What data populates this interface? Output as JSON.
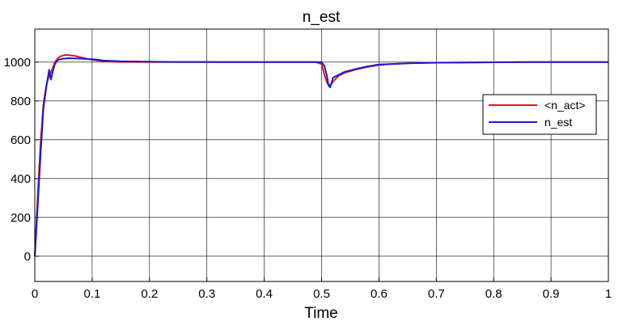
{
  "chart_data": {
    "type": "line",
    "title": "n_est",
    "xlabel": "Time",
    "ylabel": "",
    "xlim": [
      0,
      1
    ],
    "ylim": [
      -130,
      1170
    ],
    "xticks": [
      "0",
      "0.1",
      "0.2",
      "0.3",
      "0.4",
      "0.5",
      "0.6",
      "0.7",
      "0.8",
      "0.9",
      "1"
    ],
    "yticks": [
      "0",
      "200",
      "400",
      "600",
      "800",
      "1000"
    ],
    "grid": true,
    "legend_position": "right",
    "colors": {
      "background": "#ffffff",
      "grid": "#000000",
      "n_act": "#e0161b",
      "n_est": "#1a1ad6"
    },
    "series": [
      {
        "name": "<n_act>",
        "color": "#e0161b",
        "x": [
          0,
          0.005,
          0.01,
          0.015,
          0.02,
          0.025,
          0.03,
          0.035,
          0.04,
          0.045,
          0.05,
          0.055,
          0.06,
          0.07,
          0.08,
          0.09,
          0.1,
          0.11,
          0.12,
          0.13,
          0.15,
          0.2,
          0.25,
          0.3,
          0.35,
          0.4,
          0.45,
          0.49,
          0.5,
          0.505,
          0.51,
          0.515,
          0.52,
          0.53,
          0.54,
          0.56,
          0.58,
          0.6,
          0.62,
          0.65,
          0.7,
          0.75,
          0.8,
          0.85,
          0.9,
          0.95,
          1.0
        ],
        "y": [
          0,
          300,
          580,
          780,
          880,
          930,
          960,
          1000,
          1020,
          1030,
          1035,
          1037,
          1036,
          1032,
          1025,
          1018,
          1012,
          1008,
          1005,
          1003,
          1001,
          1000,
          1000,
          1000,
          1000,
          1000,
          1000,
          1000,
          990,
          935,
          890,
          880,
          900,
          930,
          945,
          962,
          975,
          985,
          990,
          994,
          997,
          998,
          999,
          1000,
          1000,
          1000,
          1000
        ]
      },
      {
        "name": "n_est",
        "color": "#1a1ad6",
        "x": [
          0,
          0.005,
          0.01,
          0.015,
          0.02,
          0.025,
          0.028,
          0.032,
          0.035,
          0.04,
          0.045,
          0.05,
          0.06,
          0.08,
          0.1,
          0.11,
          0.12,
          0.15,
          0.2,
          0.25,
          0.3,
          0.35,
          0.4,
          0.45,
          0.5,
          0.505,
          0.51,
          0.512,
          0.515,
          0.518,
          0.52,
          0.53,
          0.54,
          0.56,
          0.58,
          0.6,
          0.62,
          0.65,
          0.7,
          0.75,
          0.8,
          0.85,
          0.9,
          0.95,
          1.0
        ],
        "y": [
          0,
          250,
          520,
          760,
          870,
          960,
          910,
          960,
          990,
          1010,
          1015,
          1018,
          1020,
          1018,
          1015,
          1012,
          1008,
          1004,
          1002,
          1001,
          1001,
          1000,
          1000,
          1000,
          1000,
          980,
          920,
          880,
          870,
          900,
          920,
          935,
          950,
          965,
          978,
          988,
          990,
          994,
          997,
          998,
          999,
          1000,
          1000,
          1000,
          1000
        ]
      }
    ]
  }
}
